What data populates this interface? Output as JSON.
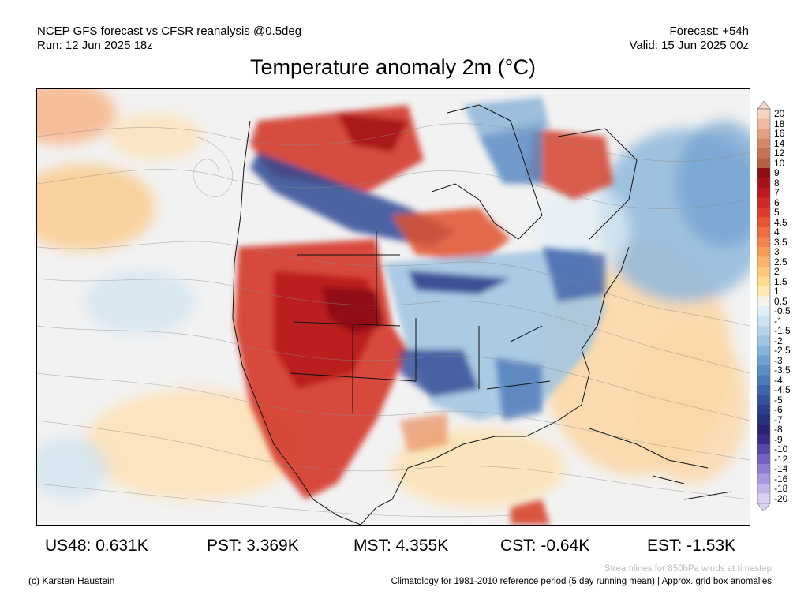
{
  "header": {
    "line1_left": "NCEP GFS forecast vs CFSR reanalysis @0.5deg",
    "line2_left": "Run: 12 Jun 2025 18z",
    "line1_right": "Forecast: +54h",
    "line2_right": "Valid: 15 Jun 2025 00z"
  },
  "title": "Temperature anomaly 2m (°C)",
  "colorbar": {
    "labels": [
      "20",
      "18",
      "16",
      "14",
      "12",
      "10",
      "9",
      "8",
      "7",
      "6",
      "5",
      "4.5",
      "4",
      "3.5",
      "3",
      "2.5",
      "2",
      "1.5",
      "1",
      "0.5",
      "-0.5",
      "-1",
      "-1.5",
      "-2",
      "-2.5",
      "-3",
      "-3.5",
      "-4",
      "-4.5",
      "-5",
      "-6",
      "-7",
      "-8",
      "-9",
      "-10",
      "-12",
      "-14",
      "-16",
      "-18",
      "-20"
    ],
    "colors": [
      "#f7d3c2",
      "#eebaa0",
      "#e3a083",
      "#d5896a",
      "#c67356",
      "#b65f45",
      "#8c0d14",
      "#a51218",
      "#bc1a1e",
      "#cf2a26",
      "#de3d2c",
      "#e65534",
      "#ee6c3f",
      "#f4844b",
      "#f89c58",
      "#fab46a",
      "#fbc97c",
      "#fcdb91",
      "#fde9b1",
      "#f6f3ea",
      "#e1eef6",
      "#cde3f1",
      "#b6d5ea",
      "#9fc5e2",
      "#87b5d9",
      "#70a3cf",
      "#5b90c4",
      "#4a7cb8",
      "#3d67aa",
      "#33539b",
      "#2c408b",
      "#28307a",
      "#2a2270",
      "#3a2c8a",
      "#5846a8",
      "#7561c0",
      "#8f7dd1",
      "#a999de",
      "#c2b5e9",
      "#dad0f2"
    ]
  },
  "stats": {
    "us48": "US48: 0.631K",
    "pst": "PST: 3.369K",
    "mst": "MST: 4.355K",
    "cst": "CST: -0.64K",
    "est": "EST: -1.53K"
  },
  "footer": {
    "credit": "(c) Karsten Haustein",
    "streamlines": "Streamlines for 850hPa winds at timestep",
    "climatology": "Climatology for 1981-2010 reference period (5 day running mean) | Approx. grid box anomalies"
  }
}
